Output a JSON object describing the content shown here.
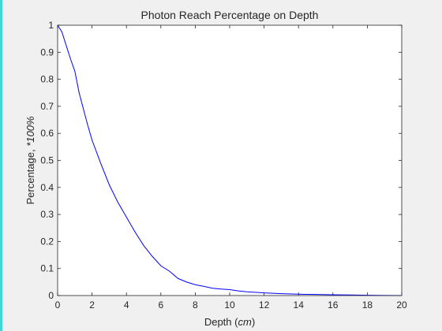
{
  "chart_data": {
    "type": "line",
    "title": "Photon Reach Percentage on Depth",
    "xlabel": {
      "text": "Depth (",
      "unit": "cm",
      "close": ")"
    },
    "ylabel": {
      "text": "Percentage, ",
      "unit": "*100%"
    },
    "xlim": [
      0,
      20
    ],
    "ylim": [
      0,
      1
    ],
    "xticks": [
      0,
      2,
      4,
      6,
      8,
      10,
      12,
      14,
      16,
      18,
      20
    ],
    "yticks": [
      0,
      0.1,
      0.2,
      0.3,
      0.4,
      0.5,
      0.6,
      0.7,
      0.8,
      0.9,
      1
    ],
    "grid": false,
    "line_color": "#0000ff",
    "series": [
      {
        "x": [
          0,
          0.25,
          0.5,
          0.75,
          1,
          1.25,
          1.5,
          1.75,
          2,
          2.5,
          3,
          3.5,
          4,
          4.5,
          5,
          5.5,
          6,
          6.5,
          7,
          7.5,
          8,
          8.5,
          9,
          9.5,
          10,
          10.5,
          11,
          12,
          13,
          14,
          15,
          16,
          17,
          18,
          19,
          20
        ],
        "y": [
          1.0,
          0.975,
          0.925,
          0.875,
          0.83,
          0.75,
          0.69,
          0.63,
          0.575,
          0.49,
          0.41,
          0.345,
          0.29,
          0.235,
          0.185,
          0.145,
          0.11,
          0.09,
          0.063,
          0.05,
          0.04,
          0.034,
          0.027,
          0.024,
          0.022,
          0.017,
          0.014,
          0.01,
          0.007,
          0.005,
          0.004,
          0.003,
          0.002,
          0.001,
          0.0005,
          0.0
        ]
      }
    ]
  }
}
